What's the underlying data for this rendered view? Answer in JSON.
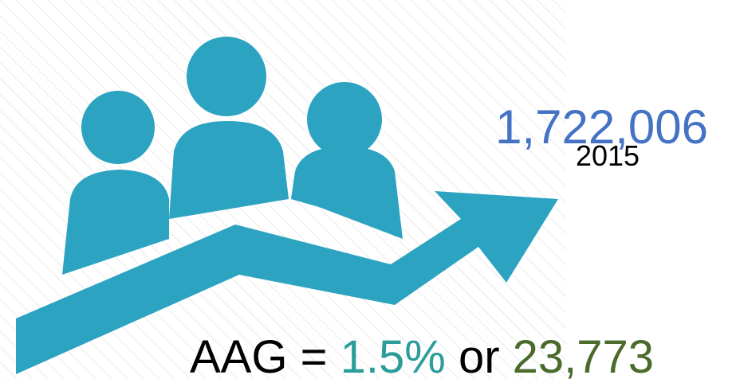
{
  "headline": {
    "value": "1,722,006",
    "year": "2015"
  },
  "growth": {
    "prefix": "AAG =",
    "rate": "1.5%",
    "joiner": "or",
    "amount": "23,773"
  }
}
